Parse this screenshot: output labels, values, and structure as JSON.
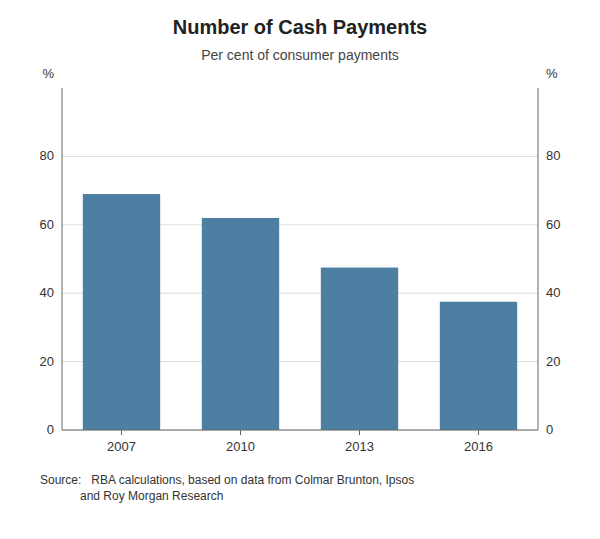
{
  "chart_data": {
    "type": "bar",
    "title": "Number of Cash Payments",
    "subtitle": "Per cent of consumer payments",
    "categories": [
      "2007",
      "2010",
      "2013",
      "2016"
    ],
    "values": [
      69,
      62,
      47.5,
      37.5
    ],
    "color": "#4d7fa3",
    "ylim": [
      0,
      100
    ],
    "yticks": [
      0,
      20,
      40,
      60,
      80
    ],
    "y2lim": [
      0,
      100
    ],
    "y2ticks": [
      0,
      20,
      40,
      60,
      80
    ],
    "ylabel": "%",
    "y2label": "%",
    "grid": true,
    "source": [
      "Source:   RBA calculations, based on data from Colmar Brunton, Ipsos",
      "            and Roy Morgan Research"
    ]
  }
}
